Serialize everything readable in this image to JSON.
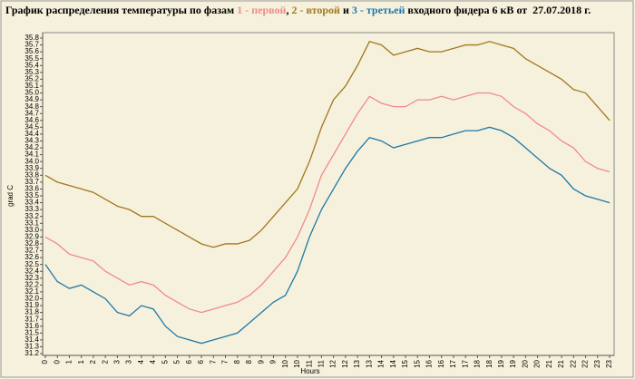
{
  "chart_data": {
    "type": "line",
    "title_parts": [
      {
        "text": "График распределения температуры по фазам ",
        "color": "#000000"
      },
      {
        "text": "1 - первой",
        "color": "#f08a8a"
      },
      {
        "text": ", ",
        "color": "#000000"
      },
      {
        "text": "2 - второй",
        "color": "#a0781e"
      },
      {
        "text": " и ",
        "color": "#000000"
      },
      {
        "text": "3 - третьей",
        "color": "#1f78a8"
      },
      {
        "text": " входного фидера 6 кВ от  27.07.2018 г.",
        "color": "#000000"
      }
    ],
    "x_label": "Hours",
    "y_label": "grad C",
    "x": [
      0,
      0.5,
      1,
      1.5,
      2,
      2.5,
      3,
      3.5,
      4,
      4.5,
      5,
      5.5,
      6,
      6.5,
      7,
      7.5,
      8,
      8.5,
      9,
      9.5,
      10,
      10.5,
      11,
      11.5,
      12,
      12.5,
      13,
      13.5,
      14,
      14.5,
      15,
      15.5,
      16,
      16.5,
      17,
      17.5,
      18,
      18.5,
      19,
      19.5,
      20,
      20.5,
      21,
      21.5,
      22,
      22.5,
      23,
      23.5
    ],
    "xlim": [
      0,
      23.5
    ],
    "xticks": [
      0,
      {
        "value": 0.5,
        "label": "0"
      },
      1,
      {
        "value": 1.5,
        "label": "1"
      },
      2,
      {
        "value": 2.5,
        "label": "2"
      },
      3,
      {
        "value": 3.5,
        "label": "3"
      },
      4,
      {
        "value": 4.5,
        "label": "4"
      },
      5,
      {
        "value": 5.5,
        "label": "5"
      },
      6,
      {
        "value": 6.5,
        "label": "6"
      },
      7,
      {
        "value": 7.5,
        "label": "7"
      },
      8,
      {
        "value": 8.5,
        "label": "8"
      },
      9,
      {
        "value": 9.5,
        "label": "9"
      },
      10,
      {
        "value": 10.5,
        "label": "10"
      },
      11,
      {
        "value": 11.5,
        "label": "11"
      },
      12,
      {
        "value": 12.5,
        "label": "12"
      },
      13,
      {
        "value": 13.5,
        "label": "13"
      },
      14,
      {
        "value": 14.5,
        "label": "14"
      },
      15,
      {
        "value": 15.5,
        "label": "15"
      },
      16,
      {
        "value": 16.5,
        "label": "16"
      },
      17,
      {
        "value": 17.5,
        "label": "17"
      },
      18,
      {
        "value": 18.5,
        "label": "18"
      },
      19,
      {
        "value": 19.5,
        "label": "19"
      },
      20,
      {
        "value": 20.5,
        "label": "20"
      },
      21,
      {
        "value": 21.5,
        "label": "21"
      },
      22,
      {
        "value": 22.5,
        "label": "22"
      },
      23,
      {
        "value": 23.5,
        "label": "23"
      }
    ],
    "ylim": [
      31.2,
      35.8
    ],
    "yticks": [
      31.2,
      31.3,
      31.4,
      31.5,
      31.6,
      31.7,
      31.8,
      31.9,
      {
        "value": 32,
        "label": "32.0"
      },
      32.1,
      32.2,
      32.3,
      32.4,
      32.5,
      32.6,
      32.7,
      32.8,
      32.9,
      {
        "value": 33,
        "label": "33.0"
      },
      33.1,
      33.2,
      33.3,
      33.4,
      33.5,
      33.6,
      33.7,
      33.8,
      33.9,
      {
        "value": 34,
        "label": "34.0"
      },
      34.1,
      34.2,
      34.3,
      34.4,
      34.5,
      34.6,
      34.7,
      34.8,
      34.9,
      {
        "value": 35,
        "label": "35.0"
      },
      35.1,
      35.2,
      35.3,
      35.4,
      35.5,
      35.6,
      35.7,
      35.8
    ],
    "grid": false,
    "series": [
      {
        "color": "#f08a8a",
        "values": [
          32.9,
          32.8,
          32.65,
          32.6,
          32.55,
          32.4,
          32.3,
          32.2,
          32.25,
          32.2,
          32.05,
          31.95,
          31.85,
          31.8,
          31.85,
          31.9,
          31.95,
          32.05,
          32.2,
          32.4,
          32.6,
          32.9,
          33.3,
          33.8,
          34.1,
          34.4,
          34.7,
          34.95,
          34.85,
          34.8,
          34.8,
          34.9,
          34.9,
          34.95,
          34.9,
          34.95,
          35.0,
          35.0,
          34.95,
          34.8,
          34.7,
          34.55,
          34.45,
          34.3,
          34.2,
          34.0,
          33.9,
          33.85
        ]
      },
      {
        "color": "#a0781e",
        "values": [
          33.8,
          33.7,
          33.65,
          33.6,
          33.55,
          33.45,
          33.35,
          33.3,
          33.2,
          33.2,
          33.1,
          33.0,
          32.9,
          32.8,
          32.75,
          32.8,
          32.8,
          32.85,
          33.0,
          33.2,
          33.4,
          33.6,
          34.0,
          34.5,
          34.9,
          35.1,
          35.4,
          35.75,
          35.7,
          35.55,
          35.6,
          35.65,
          35.6,
          35.6,
          35.65,
          35.7,
          35.7,
          35.75,
          35.7,
          35.65,
          35.5,
          35.4,
          35.3,
          35.2,
          35.05,
          35.0,
          34.8,
          34.6
        ]
      },
      {
        "color": "#1f78a8",
        "values": [
          32.5,
          32.25,
          32.15,
          32.2,
          32.1,
          32.0,
          31.8,
          31.75,
          31.9,
          31.85,
          31.6,
          31.45,
          31.4,
          31.35,
          31.4,
          31.45,
          31.5,
          31.65,
          31.8,
          31.95,
          32.05,
          32.4,
          32.9,
          33.3,
          33.6,
          33.9,
          34.15,
          34.35,
          34.3,
          34.2,
          34.25,
          34.3,
          34.35,
          34.35,
          34.4,
          34.45,
          34.45,
          34.5,
          34.45,
          34.35,
          34.2,
          34.05,
          33.9,
          33.8,
          33.6,
          33.5,
          33.45,
          33.4
        ]
      }
    ]
  }
}
